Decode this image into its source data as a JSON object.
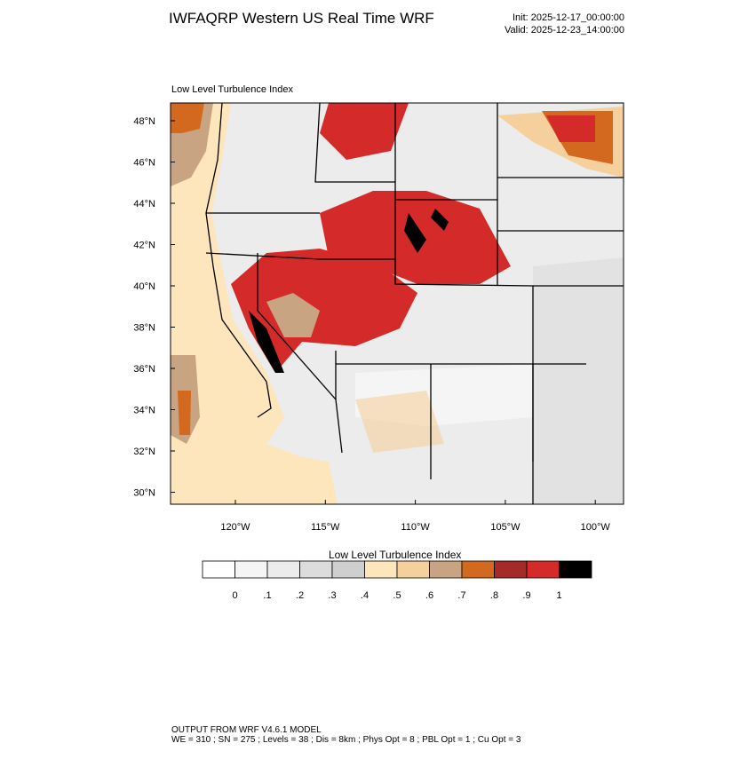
{
  "header": {
    "title": "IWFAQRP Western US Real Time WRF",
    "init": "Init: 2025-12-17_00:00:00",
    "valid": "Valid: 2025-12-23_14:00:00"
  },
  "map": {
    "title": "Low Level Turbulence Index",
    "lat_labels": [
      "48°N",
      "46°N",
      "44°N",
      "42°N",
      "40°N",
      "38°N",
      "36°N",
      "34°N",
      "32°N",
      "30°N"
    ],
    "lon_labels": [
      "120°W",
      "115°W",
      "110°W",
      "105°W",
      "100°W"
    ]
  },
  "colorbar": {
    "title": "Low Level Turbulence Index",
    "colors": [
      "#ffffff",
      "#f5f5f5",
      "#ececec",
      "#dcdcdc",
      "#cfcfcf",
      "#fde5bc",
      "#f5d09c",
      "#c9a482",
      "#d2691e",
      "#a52a2a",
      "#d42a2a",
      "#000000"
    ],
    "labels": [
      "0",
      ".1",
      ".2",
      ".3",
      ".4",
      ".5",
      ".6",
      ".7",
      ".8",
      ".9",
      "1"
    ]
  },
  "footer": {
    "lines": [
      "OUTPUT FROM WRF V4.6.1 MODEL",
      "WE = 310 ; SN = 275 ; Levels = 38 ; Dis = 8km ; Phys Opt = 8 ; PBL Opt = 1 ; Cu Opt = 3"
    ]
  }
}
